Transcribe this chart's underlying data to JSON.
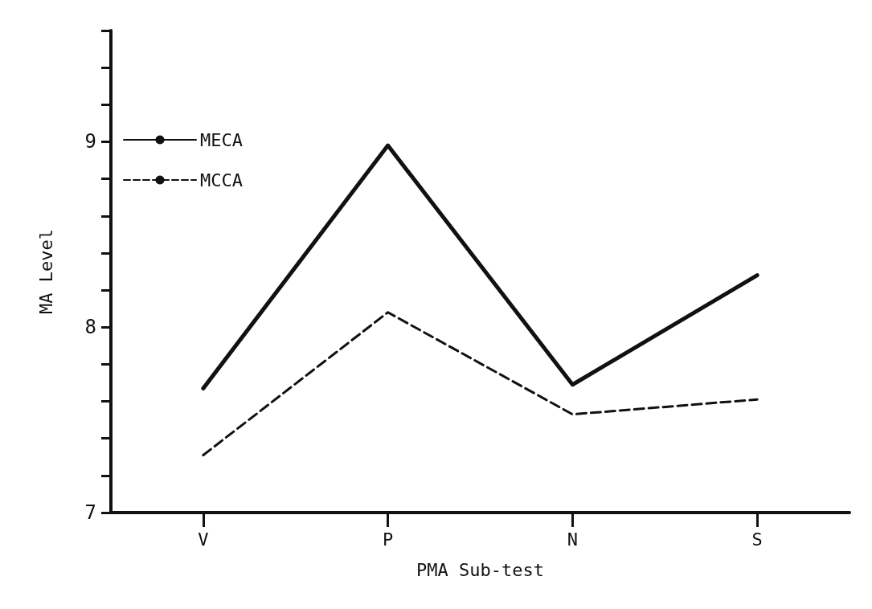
{
  "chart_data": {
    "type": "line",
    "xlabel": "PMA Sub-test",
    "ylabel": "MA Level",
    "categories": [
      "V",
      "P",
      "N",
      "S"
    ],
    "series": [
      {
        "name": "MECA",
        "color": "#111111",
        "line_style": "solid",
        "values": [
          7.67,
          8.98,
          7.69,
          8.28
        ]
      },
      {
        "name": "MCCA",
        "color": "#111111",
        "line_style": "dashed",
        "values": [
          7.31,
          8.08,
          7.53,
          7.61
        ]
      }
    ],
    "ylim": [
      7,
      9.6
    ],
    "yticks": [
      7,
      {
        "value": 7.2,
        "label": null
      },
      {
        "value": 7.4,
        "label": null
      },
      {
        "value": 7.6,
        "label": null
      },
      {
        "value": 7.8,
        "label": null
      },
      8,
      {
        "value": 8.2,
        "label": null
      },
      {
        "value": 8.4,
        "label": null
      },
      {
        "value": 8.6,
        "label": null
      },
      {
        "value": 8.8,
        "label": null
      },
      9,
      {
        "value": 9.2,
        "label": null
      },
      {
        "value": 9.4,
        "label": null
      },
      {
        "value": 9.6,
        "label": null
      }
    ],
    "grid": false,
    "legend": "top left",
    "marker": "none"
  }
}
